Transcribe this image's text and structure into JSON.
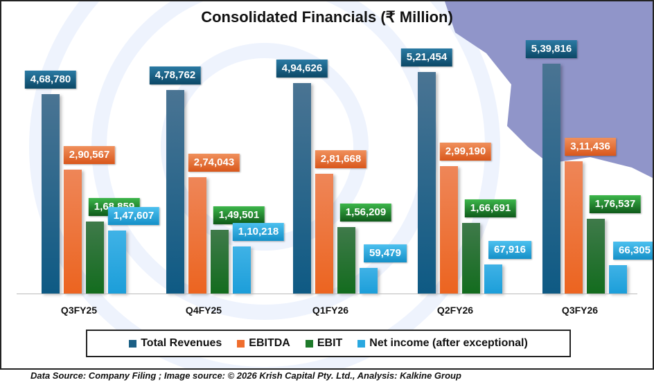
{
  "chart_data": {
    "type": "bar",
    "title": "Consolidated Financials (₹ Million)",
    "categories": [
      "Q3FY25",
      "Q4FY25",
      "Q1FY26",
      "Q2FY26",
      "Q3FY26"
    ],
    "series": [
      {
        "name": "Total Revenues",
        "color": "#1b5f85",
        "values": [
          468780,
          478762,
          494626,
          521454,
          539816
        ],
        "labels": [
          "4,68,780",
          "4,78,762",
          "4,94,626",
          "5,21,454",
          "5,39,816"
        ]
      },
      {
        "name": "EBITDA",
        "color": "#ef6d2d",
        "values": [
          290567,
          274043,
          281668,
          299190,
          311436
        ],
        "labels": [
          "2,90,567",
          "2,74,043",
          "2,81,668",
          "2,99,190",
          "3,11,436"
        ]
      },
      {
        "name": "EBIT",
        "color": "#1e7a2a",
        "values": [
          168859,
          149501,
          156209,
          166691,
          176537
        ],
        "labels": [
          "1,68,859",
          "1,49,501",
          "1,56,209",
          "1,66,691",
          "1,76,537"
        ]
      },
      {
        "name": "Net income (after exceptional)",
        "color": "#29a8e0",
        "values": [
          147607,
          110218,
          59479,
          67916,
          66305
        ],
        "labels": [
          "1,47,607",
          "1,10,218",
          "59,479",
          "67,916",
          "66,305"
        ]
      }
    ],
    "legend_position": "bottom",
    "grid": false
  },
  "footer": "Data Source: Company Filing ; Image source: © 2026 Krish Capital Pty. Ltd., Analysis: Kalkine Group"
}
